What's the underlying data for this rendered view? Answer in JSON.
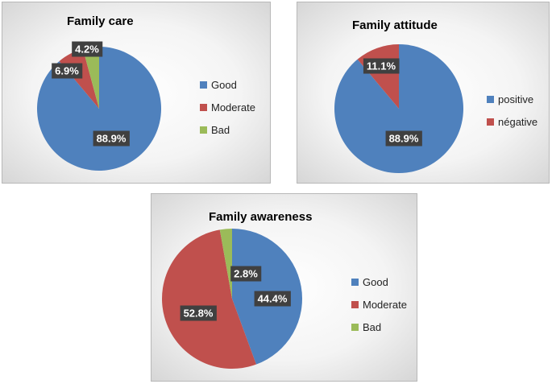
{
  "chart_data": [
    {
      "type": "pie",
      "title": "Family care",
      "categories": [
        "Good",
        "Moderate",
        "Bad"
      ],
      "values": [
        88.9,
        6.9,
        4.2
      ],
      "labels": [
        "88.9%",
        "6.9%",
        "4.2%"
      ],
      "colors": [
        "#4f81bd",
        "#c0504d",
        "#9bbb59"
      ],
      "legend": "right"
    },
    {
      "type": "pie",
      "title": "Family attitude",
      "categories": [
        "positive",
        "négative"
      ],
      "values": [
        88.9,
        11.1
      ],
      "labels": [
        "88.9%",
        "11.1%"
      ],
      "colors": [
        "#4f81bd",
        "#c0504d"
      ],
      "legend": "right"
    },
    {
      "type": "pie",
      "title": "Family awareness",
      "categories": [
        "Good",
        "Moderate",
        "Bad"
      ],
      "values": [
        44.4,
        52.8,
        2.8
      ],
      "labels": [
        "44.4%",
        "52.8%",
        "2.8%"
      ],
      "colors": [
        "#4f81bd",
        "#c0504d",
        "#9bbb59"
      ],
      "legend": "right"
    }
  ]
}
